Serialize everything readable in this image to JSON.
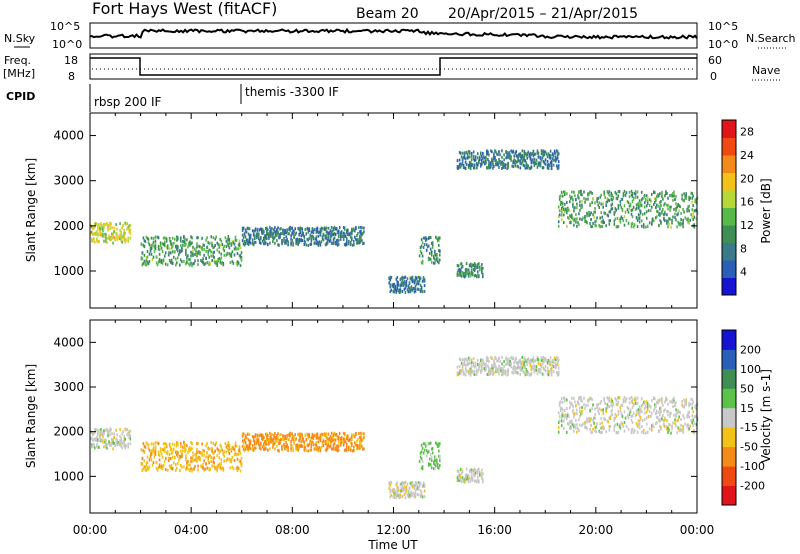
{
  "header": {
    "title": "Fort Hays West (fitACF)",
    "beam": "Beam 20",
    "dates": "20/Apr/2015 – 21/Apr/2015"
  },
  "strip_labels": {
    "nsky": "N.Sky",
    "nsearch": "N.Search",
    "freq": "Freq.",
    "freq_unit": "[MHz]",
    "nave": "Nave",
    "cpid": "CPID"
  },
  "strip_ticks": {
    "nsky_left": [
      "10^5",
      "10^0"
    ],
    "nsky_right": [
      "10^5",
      "10^0"
    ],
    "freq_left": [
      "18",
      "8"
    ],
    "nave_right": [
      "60",
      "0"
    ]
  },
  "cpid_modes": [
    {
      "label": "rbsp 200 IF",
      "start_hr": 0
    },
    {
      "label": "themis -3300 IF",
      "start_hr": 6
    }
  ],
  "colors": {
    "power_scale": [
      "#1414d2",
      "#2a5fb8",
      "#3b7a8a",
      "#3f8f55",
      "#58b84a",
      "#b8d83a",
      "#f2c21a",
      "#f48a1a",
      "#ef4a12",
      "#e0141a"
    ],
    "velocity_scale": [
      "#1414d2",
      "#2a5fb8",
      "#3f8f55",
      "#5dc24a",
      "#c8c8c8",
      "#f2c21a",
      "#f48a1a",
      "#ef4a12",
      "#e0141a"
    ]
  },
  "chart_data": [
    {
      "type": "heatmap",
      "title": "Power",
      "ylabel": "Slant Range [km]",
      "xlabel": "Time UT",
      "x_range_hours": [
        0,
        24
      ],
      "ylim_km": [
        180,
        4500
      ],
      "y_ticks": [
        "1000",
        "2000",
        "3000",
        "4000"
      ],
      "x_ticks": [
        "00:00",
        "04:00",
        "08:00",
        "12:00",
        "16:00",
        "20:00",
        "00:00"
      ],
      "colorbar": {
        "label": "Power [dB]",
        "ticks": [
          "4",
          "8",
          "12",
          "16",
          "20",
          "24",
          "28"
        ],
        "range": [
          0,
          30
        ]
      },
      "echo_bands": [
        {
          "t": [
            0,
            1.6
          ],
          "r_km": [
            1650,
            2100
          ],
          "level": 16
        },
        {
          "t": [
            2.0,
            6.0
          ],
          "r_km": [
            1150,
            1800
          ],
          "level": 10
        },
        {
          "t": [
            6.0,
            10.8
          ],
          "r_km": [
            1600,
            2000
          ],
          "level": 6
        },
        {
          "t": [
            11.8,
            13.2
          ],
          "r_km": [
            550,
            900
          ],
          "level": 6
        },
        {
          "t": [
            13.0,
            13.8
          ],
          "r_km": [
            1200,
            1800
          ],
          "level": 8
        },
        {
          "t": [
            14.5,
            15.5
          ],
          "r_km": [
            900,
            1200
          ],
          "level": 8
        },
        {
          "t": [
            14.5,
            18.5
          ],
          "r_km": [
            3300,
            3700
          ],
          "level": 6
        },
        {
          "t": [
            18.5,
            24
          ],
          "r_km": [
            2000,
            2800
          ],
          "level": 10
        }
      ]
    },
    {
      "type": "heatmap",
      "title": "Velocity",
      "ylabel": "Slant Range [km]",
      "xlabel": "Time UT",
      "x_range_hours": [
        0,
        24
      ],
      "ylim_km": [
        180,
        4500
      ],
      "y_ticks": [
        "1000",
        "2000",
        "3000",
        "4000"
      ],
      "x_ticks": [
        "00:00",
        "04:00",
        "08:00",
        "12:00",
        "16:00",
        "20:00",
        "00:00"
      ],
      "colorbar": {
        "label": "Velocity [m s-1]",
        "ticks": [
          "200",
          "100",
          "50",
          "15",
          "-15",
          "-50",
          "-100",
          "-200"
        ]
      },
      "echo_bands": [
        {
          "t": [
            0,
            1.6
          ],
          "r_km": [
            1650,
            2100
          ],
          "velocity": 0
        },
        {
          "t": [
            2.0,
            6.0
          ],
          "r_km": [
            1150,
            1800
          ],
          "velocity": -40
        },
        {
          "t": [
            6.0,
            10.8
          ],
          "r_km": [
            1600,
            2000
          ],
          "velocity": -60
        },
        {
          "t": [
            11.8,
            13.2
          ],
          "r_km": [
            550,
            900
          ],
          "velocity": 0
        },
        {
          "t": [
            13.0,
            13.8
          ],
          "r_km": [
            1200,
            1800
          ],
          "velocity": 30
        },
        {
          "t": [
            14.5,
            15.5
          ],
          "r_km": [
            900,
            1200
          ],
          "velocity": 0
        },
        {
          "t": [
            14.5,
            18.5
          ],
          "r_km": [
            3300,
            3700
          ],
          "velocity": 0
        },
        {
          "t": [
            18.5,
            24
          ],
          "r_km": [
            2000,
            2800
          ],
          "velocity": 0
        }
      ]
    }
  ],
  "time_axis_label": "Time UT"
}
